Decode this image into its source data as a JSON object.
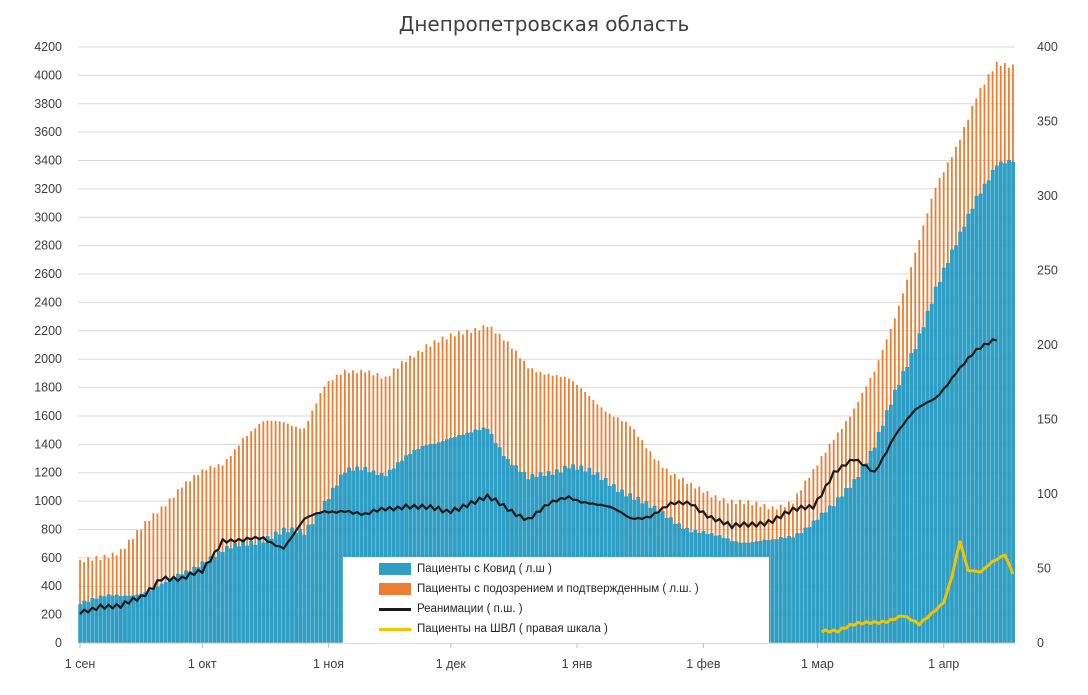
{
  "chart_data": {
    "type": "bar",
    "title": "Днепропетровская область",
    "x_labels": [
      "1 сен",
      "1 окт",
      "1 ноя",
      "1 дек",
      "1 янв",
      "1 фев",
      "1 мар",
      "1 апр"
    ],
    "x_label_day_index": [
      0,
      30,
      61,
      91,
      122,
      153,
      181,
      212
    ],
    "y_left": {
      "min": 0,
      "max": 4200,
      "ticks": [
        0,
        200,
        400,
        600,
        800,
        1000,
        1200,
        1400,
        1600,
        1800,
        2000,
        2200,
        2400,
        2600,
        2800,
        3000,
        3200,
        3400,
        3600,
        3800,
        4000,
        4200
      ]
    },
    "y_right": {
      "min": 0,
      "max": 400,
      "ticks": [
        0,
        50,
        100,
        150,
        200,
        250,
        300,
        350,
        400
      ]
    },
    "grid": true,
    "legend_position": "bottom-center",
    "series": [
      {
        "name": "Пациенты с Ковид ( л.ш )",
        "axis": "left",
        "kind": "bar",
        "color": "#2e9ec4",
        "points": [
          [
            0,
            300
          ],
          [
            10,
            330
          ],
          [
            20,
            400
          ],
          [
            30,
            580
          ],
          [
            40,
            700
          ],
          [
            50,
            780
          ],
          [
            55,
            780
          ],
          [
            60,
            1000
          ],
          [
            65,
            1200
          ],
          [
            70,
            1230
          ],
          [
            75,
            1200
          ],
          [
            80,
            1300
          ],
          [
            85,
            1400
          ],
          [
            90,
            1450
          ],
          [
            95,
            1460
          ],
          [
            100,
            1520
          ],
          [
            105,
            1300
          ],
          [
            110,
            1150
          ],
          [
            115,
            1200
          ],
          [
            120,
            1260
          ],
          [
            125,
            1200
          ],
          [
            130,
            1130
          ],
          [
            135,
            1050
          ],
          [
            140,
            950
          ],
          [
            145,
            880
          ],
          [
            150,
            800
          ],
          [
            155,
            750
          ],
          [
            160,
            730
          ],
          [
            165,
            720
          ],
          [
            170,
            710
          ],
          [
            175,
            760
          ],
          [
            180,
            860
          ],
          [
            185,
            960
          ],
          [
            190,
            1150
          ],
          [
            195,
            1400
          ],
          [
            200,
            1750
          ],
          [
            205,
            2100
          ],
          [
            210,
            2500
          ],
          [
            215,
            2800
          ],
          [
            220,
            3150
          ],
          [
            225,
            3380
          ]
        ]
      },
      {
        "name": "Пациенты с подозрением и подтвержденным ( л.ш. )",
        "axis": "left",
        "kind": "bar",
        "color": "#ed7d31",
        "points": [
          [
            0,
            560
          ],
          [
            5,
            600
          ],
          [
            10,
            660
          ],
          [
            15,
            800
          ],
          [
            20,
            950
          ],
          [
            25,
            1120
          ],
          [
            30,
            1200
          ],
          [
            35,
            1260
          ],
          [
            40,
            1450
          ],
          [
            45,
            1550
          ],
          [
            50,
            1560
          ],
          [
            55,
            1520
          ],
          [
            60,
            1800
          ],
          [
            65,
            1920
          ],
          [
            70,
            1930
          ],
          [
            75,
            1850
          ],
          [
            80,
            2000
          ],
          [
            85,
            2100
          ],
          [
            90,
            2140
          ],
          [
            95,
            2200
          ],
          [
            100,
            2250
          ],
          [
            105,
            2100
          ],
          [
            110,
            1950
          ],
          [
            115,
            1900
          ],
          [
            120,
            1850
          ],
          [
            125,
            1750
          ],
          [
            130,
            1620
          ],
          [
            135,
            1520
          ],
          [
            140,
            1350
          ],
          [
            145,
            1200
          ],
          [
            150,
            1100
          ],
          [
            155,
            1050
          ],
          [
            160,
            1000
          ],
          [
            165,
            970
          ],
          [
            170,
            960
          ],
          [
            175,
            1000
          ],
          [
            180,
            1200
          ],
          [
            185,
            1450
          ],
          [
            190,
            1650
          ],
          [
            195,
            1900
          ],
          [
            200,
            2300
          ],
          [
            205,
            2750
          ],
          [
            210,
            3200
          ],
          [
            215,
            3500
          ],
          [
            220,
            3850
          ],
          [
            225,
            4070
          ]
        ]
      },
      {
        "name": "Реанимации ( п.ш. )",
        "axis": "right",
        "kind": "line",
        "color": "#1a1a1a",
        "points": [
          [
            0,
            20
          ],
          [
            5,
            26
          ],
          [
            10,
            24
          ],
          [
            15,
            30
          ],
          [
            20,
            45
          ],
          [
            25,
            42
          ],
          [
            30,
            48
          ],
          [
            35,
            70
          ],
          [
            40,
            68
          ],
          [
            45,
            70
          ],
          [
            50,
            65
          ],
          [
            55,
            82
          ],
          [
            60,
            88
          ],
          [
            65,
            90
          ],
          [
            70,
            85
          ],
          [
            75,
            90
          ],
          [
            80,
            93
          ],
          [
            85,
            90
          ],
          [
            90,
            88
          ],
          [
            95,
            94
          ],
          [
            100,
            97
          ],
          [
            105,
            90
          ],
          [
            110,
            84
          ],
          [
            115,
            92
          ],
          [
            120,
            98
          ],
          [
            125,
            95
          ],
          [
            130,
            90
          ],
          [
            135,
            84
          ],
          [
            140,
            86
          ],
          [
            145,
            92
          ],
          [
            150,
            94
          ],
          [
            155,
            85
          ],
          [
            160,
            77
          ],
          [
            165,
            80
          ],
          [
            170,
            83
          ],
          [
            175,
            88
          ],
          [
            180,
            92
          ],
          [
            185,
            115
          ],
          [
            190,
            122
          ],
          [
            195,
            115
          ],
          [
            200,
            140
          ],
          [
            205,
            155
          ],
          [
            210,
            165
          ],
          [
            215,
            182
          ],
          [
            220,
            195
          ],
          [
            225,
            205
          ]
        ]
      },
      {
        "name": "Пациенты на ШВЛ ( правая шкала )",
        "axis": "right",
        "kind": "line",
        "color": "#f5c200",
        "points": [
          [
            182,
            9
          ],
          [
            186,
            8
          ],
          [
            190,
            12
          ],
          [
            194,
            14
          ],
          [
            198,
            15
          ],
          [
            202,
            18
          ],
          [
            206,
            12
          ],
          [
            209,
            20
          ],
          [
            212,
            28
          ],
          [
            214,
            45
          ],
          [
            216,
            68
          ],
          [
            218,
            48
          ],
          [
            221,
            47
          ],
          [
            224,
            55
          ],
          [
            227,
            60
          ],
          [
            229,
            47
          ]
        ]
      }
    ]
  }
}
